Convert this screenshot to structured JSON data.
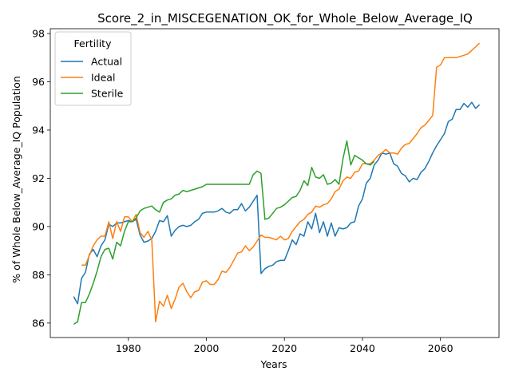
{
  "chart_data": {
    "type": "line",
    "title": "Score_2_in_MISCEGENATION_OK_for_Whole_Below_Average_IQ",
    "xlabel": "Years",
    "ylabel": "% of Whole Below_Average_IQ Population",
    "xlim": [
      1960,
      2075
    ],
    "ylim": [
      85.4,
      98.2
    ],
    "xticks": [
      1980,
      2000,
      2020,
      2040,
      2060
    ],
    "yticks": [
      86,
      88,
      90,
      92,
      94,
      96,
      98
    ],
    "grid": false,
    "legend": {
      "title": "Fertility",
      "position": "top-left"
    },
    "series": [
      {
        "name": "Actual",
        "color": "#1f77b4",
        "x": [
          1966,
          1967,
          1968,
          1969,
          1970,
          1971,
          1972,
          1973,
          1974,
          1975,
          1976,
          1977,
          1978,
          1979,
          1980,
          1981,
          1982,
          1983,
          1984,
          1985,
          1986,
          1987,
          1988,
          1989,
          1990,
          1991,
          1992,
          1993,
          1994,
          1995,
          1996,
          1997,
          1998,
          1999,
          2000,
          2001,
          2002,
          2003,
          2004,
          2005,
          2006,
          2007,
          2008,
          2009,
          2010,
          2011,
          2012,
          2013,
          2014,
          2015,
          2016,
          2017,
          2018,
          2019,
          2020,
          2021,
          2022,
          2023,
          2024,
          2025,
          2026,
          2027,
          2028,
          2029,
          2030,
          2031,
          2032,
          2033,
          2034,
          2035,
          2036,
          2037,
          2038,
          2039,
          2040,
          2041,
          2042,
          2043,
          2044,
          2045,
          2046,
          2047,
          2048,
          2049,
          2050,
          2051,
          2052,
          2053,
          2054,
          2055,
          2056,
          2057,
          2058,
          2059,
          2060,
          2061,
          2062,
          2063,
          2064,
          2065,
          2066,
          2067,
          2068,
          2069,
          2070
        ],
        "values": [
          87.1,
          86.8,
          87.85,
          88.1,
          88.85,
          89.05,
          88.75,
          89.2,
          89.45,
          90.1,
          90.0,
          90.15,
          90.15,
          90.2,
          90.25,
          90.2,
          90.3,
          89.65,
          89.35,
          89.4,
          89.5,
          89.8,
          90.25,
          90.2,
          90.45,
          89.6,
          89.85,
          90.0,
          90.05,
          90.0,
          90.05,
          90.2,
          90.3,
          90.55,
          90.6,
          90.6,
          90.6,
          90.65,
          90.75,
          90.6,
          90.55,
          90.7,
          90.7,
          90.95,
          90.65,
          90.8,
          91.05,
          91.3,
          88.05,
          88.25,
          88.35,
          88.4,
          88.55,
          88.6,
          88.6,
          89.0,
          89.45,
          89.25,
          89.7,
          89.6,
          90.2,
          89.9,
          90.55,
          89.75,
          90.2,
          89.6,
          90.15,
          89.6,
          89.95,
          89.9,
          89.95,
          90.15,
          90.2,
          90.85,
          91.15,
          91.8,
          92.0,
          92.55,
          92.75,
          93.05,
          93.0,
          93.05,
          92.6,
          92.5,
          92.2,
          92.1,
          91.85,
          92.0,
          91.95,
          92.25,
          92.4,
          92.7,
          93.05,
          93.35,
          93.6,
          93.85,
          94.35,
          94.45,
          94.85,
          94.85,
          95.1,
          94.95,
          95.15,
          94.9,
          95.05
        ]
      },
      {
        "name": "Ideal",
        "color": "#ff7f0e",
        "x": [
          1968,
          1969,
          1970,
          1971,
          1972,
          1973,
          1974,
          1975,
          1976,
          1977,
          1978,
          1979,
          1980,
          1981,
          1982,
          1983,
          1984,
          1985,
          1986,
          1987,
          1988,
          1989,
          1990,
          1991,
          1992,
          1993,
          1994,
          1995,
          1996,
          1997,
          1998,
          1999,
          2000,
          2001,
          2002,
          2003,
          2004,
          2005,
          2006,
          2007,
          2008,
          2009,
          2010,
          2011,
          2012,
          2013,
          2014,
          2015,
          2016,
          2017,
          2018,
          2019,
          2020,
          2021,
          2022,
          2023,
          2024,
          2025,
          2026,
          2027,
          2028,
          2029,
          2030,
          2031,
          2032,
          2033,
          2034,
          2035,
          2036,
          2037,
          2038,
          2039,
          2040,
          2041,
          2042,
          2043,
          2044,
          2045,
          2046,
          2047,
          2048,
          2049,
          2050,
          2051,
          2052,
          2053,
          2054,
          2055,
          2056,
          2057,
          2058,
          2059,
          2060,
          2061,
          2062,
          2063,
          2064,
          2065,
          2066,
          2067,
          2068,
          2069,
          2070
        ],
        "values": [
          88.4,
          88.4,
          88.8,
          89.2,
          89.45,
          89.6,
          89.6,
          90.2,
          89.5,
          90.2,
          89.8,
          90.4,
          90.4,
          90.2,
          90.5,
          89.75,
          89.55,
          89.8,
          89.45,
          86.05,
          86.9,
          86.7,
          87.15,
          86.6,
          87.0,
          87.5,
          87.65,
          87.3,
          87.05,
          87.3,
          87.35,
          87.7,
          87.75,
          87.6,
          87.6,
          87.8,
          88.15,
          88.1,
          88.3,
          88.6,
          88.9,
          88.95,
          89.2,
          89.0,
          89.15,
          89.4,
          89.65,
          89.55,
          89.55,
          89.5,
          89.45,
          89.6,
          89.45,
          89.5,
          89.8,
          90.0,
          90.2,
          90.3,
          90.5,
          90.6,
          90.85,
          90.8,
          90.9,
          90.95,
          91.15,
          91.45,
          91.55,
          91.9,
          92.05,
          92.0,
          92.25,
          92.3,
          92.6,
          92.6,
          92.6,
          92.75,
          92.95,
          93.05,
          93.2,
          93.05,
          93.05,
          93.0,
          93.25,
          93.4,
          93.45,
          93.65,
          93.85,
          94.1,
          94.2,
          94.4,
          94.6,
          96.6,
          96.7,
          97.0,
          97.0,
          97.0,
          97.0,
          97.05,
          97.1,
          97.15,
          97.3,
          97.45,
          97.6
        ]
      },
      {
        "name": "Sterile",
        "color": "#2ca02c",
        "x": [
          1966,
          1967,
          1968,
          1969,
          1970,
          1971,
          1972,
          1973,
          1974,
          1975,
          1976,
          1977,
          1978,
          1979,
          1980,
          1981,
          1982,
          1983,
          1984,
          1985,
          1986,
          1987,
          1988,
          1989,
          1990,
          1991,
          1992,
          1993,
          1994,
          1995,
          1996,
          1997,
          1998,
          1999,
          2000,
          2001,
          2002,
          2003,
          2004,
          2005,
          2006,
          2007,
          2008,
          2009,
          2010,
          2011,
          2012,
          2013,
          2014,
          2015,
          2016,
          2017,
          2018,
          2019,
          2020,
          2021,
          2022,
          2023,
          2024,
          2025,
          2026,
          2027,
          2028,
          2029,
          2030,
          2031,
          2032,
          2033,
          2034,
          2035,
          2036,
          2037,
          2038,
          2039,
          2040,
          2041,
          2042,
          2043
        ],
        "values": [
          85.95,
          86.05,
          86.85,
          86.85,
          87.2,
          87.65,
          88.15,
          88.75,
          89.05,
          89.1,
          88.65,
          89.35,
          89.2,
          89.8,
          90.2,
          90.2,
          90.35,
          90.65,
          90.75,
          90.8,
          90.85,
          90.7,
          90.6,
          91.0,
          91.1,
          91.15,
          91.3,
          91.35,
          91.5,
          91.45,
          91.5,
          91.55,
          91.6,
          91.65,
          91.75,
          91.75,
          91.75,
          91.75,
          91.75,
          91.75,
          91.75,
          91.75,
          91.75,
          91.75,
          91.75,
          91.75,
          92.15,
          92.3,
          92.2,
          90.3,
          90.35,
          90.55,
          90.75,
          90.8,
          90.9,
          91.05,
          91.2,
          91.25,
          91.5,
          91.9,
          91.7,
          92.45,
          92.05,
          92.0,
          92.15,
          91.75,
          91.8,
          91.95,
          91.75,
          92.8,
          93.55,
          92.55,
          92.95,
          92.85,
          92.75,
          92.6,
          92.55,
          92.7
        ]
      }
    ]
  }
}
